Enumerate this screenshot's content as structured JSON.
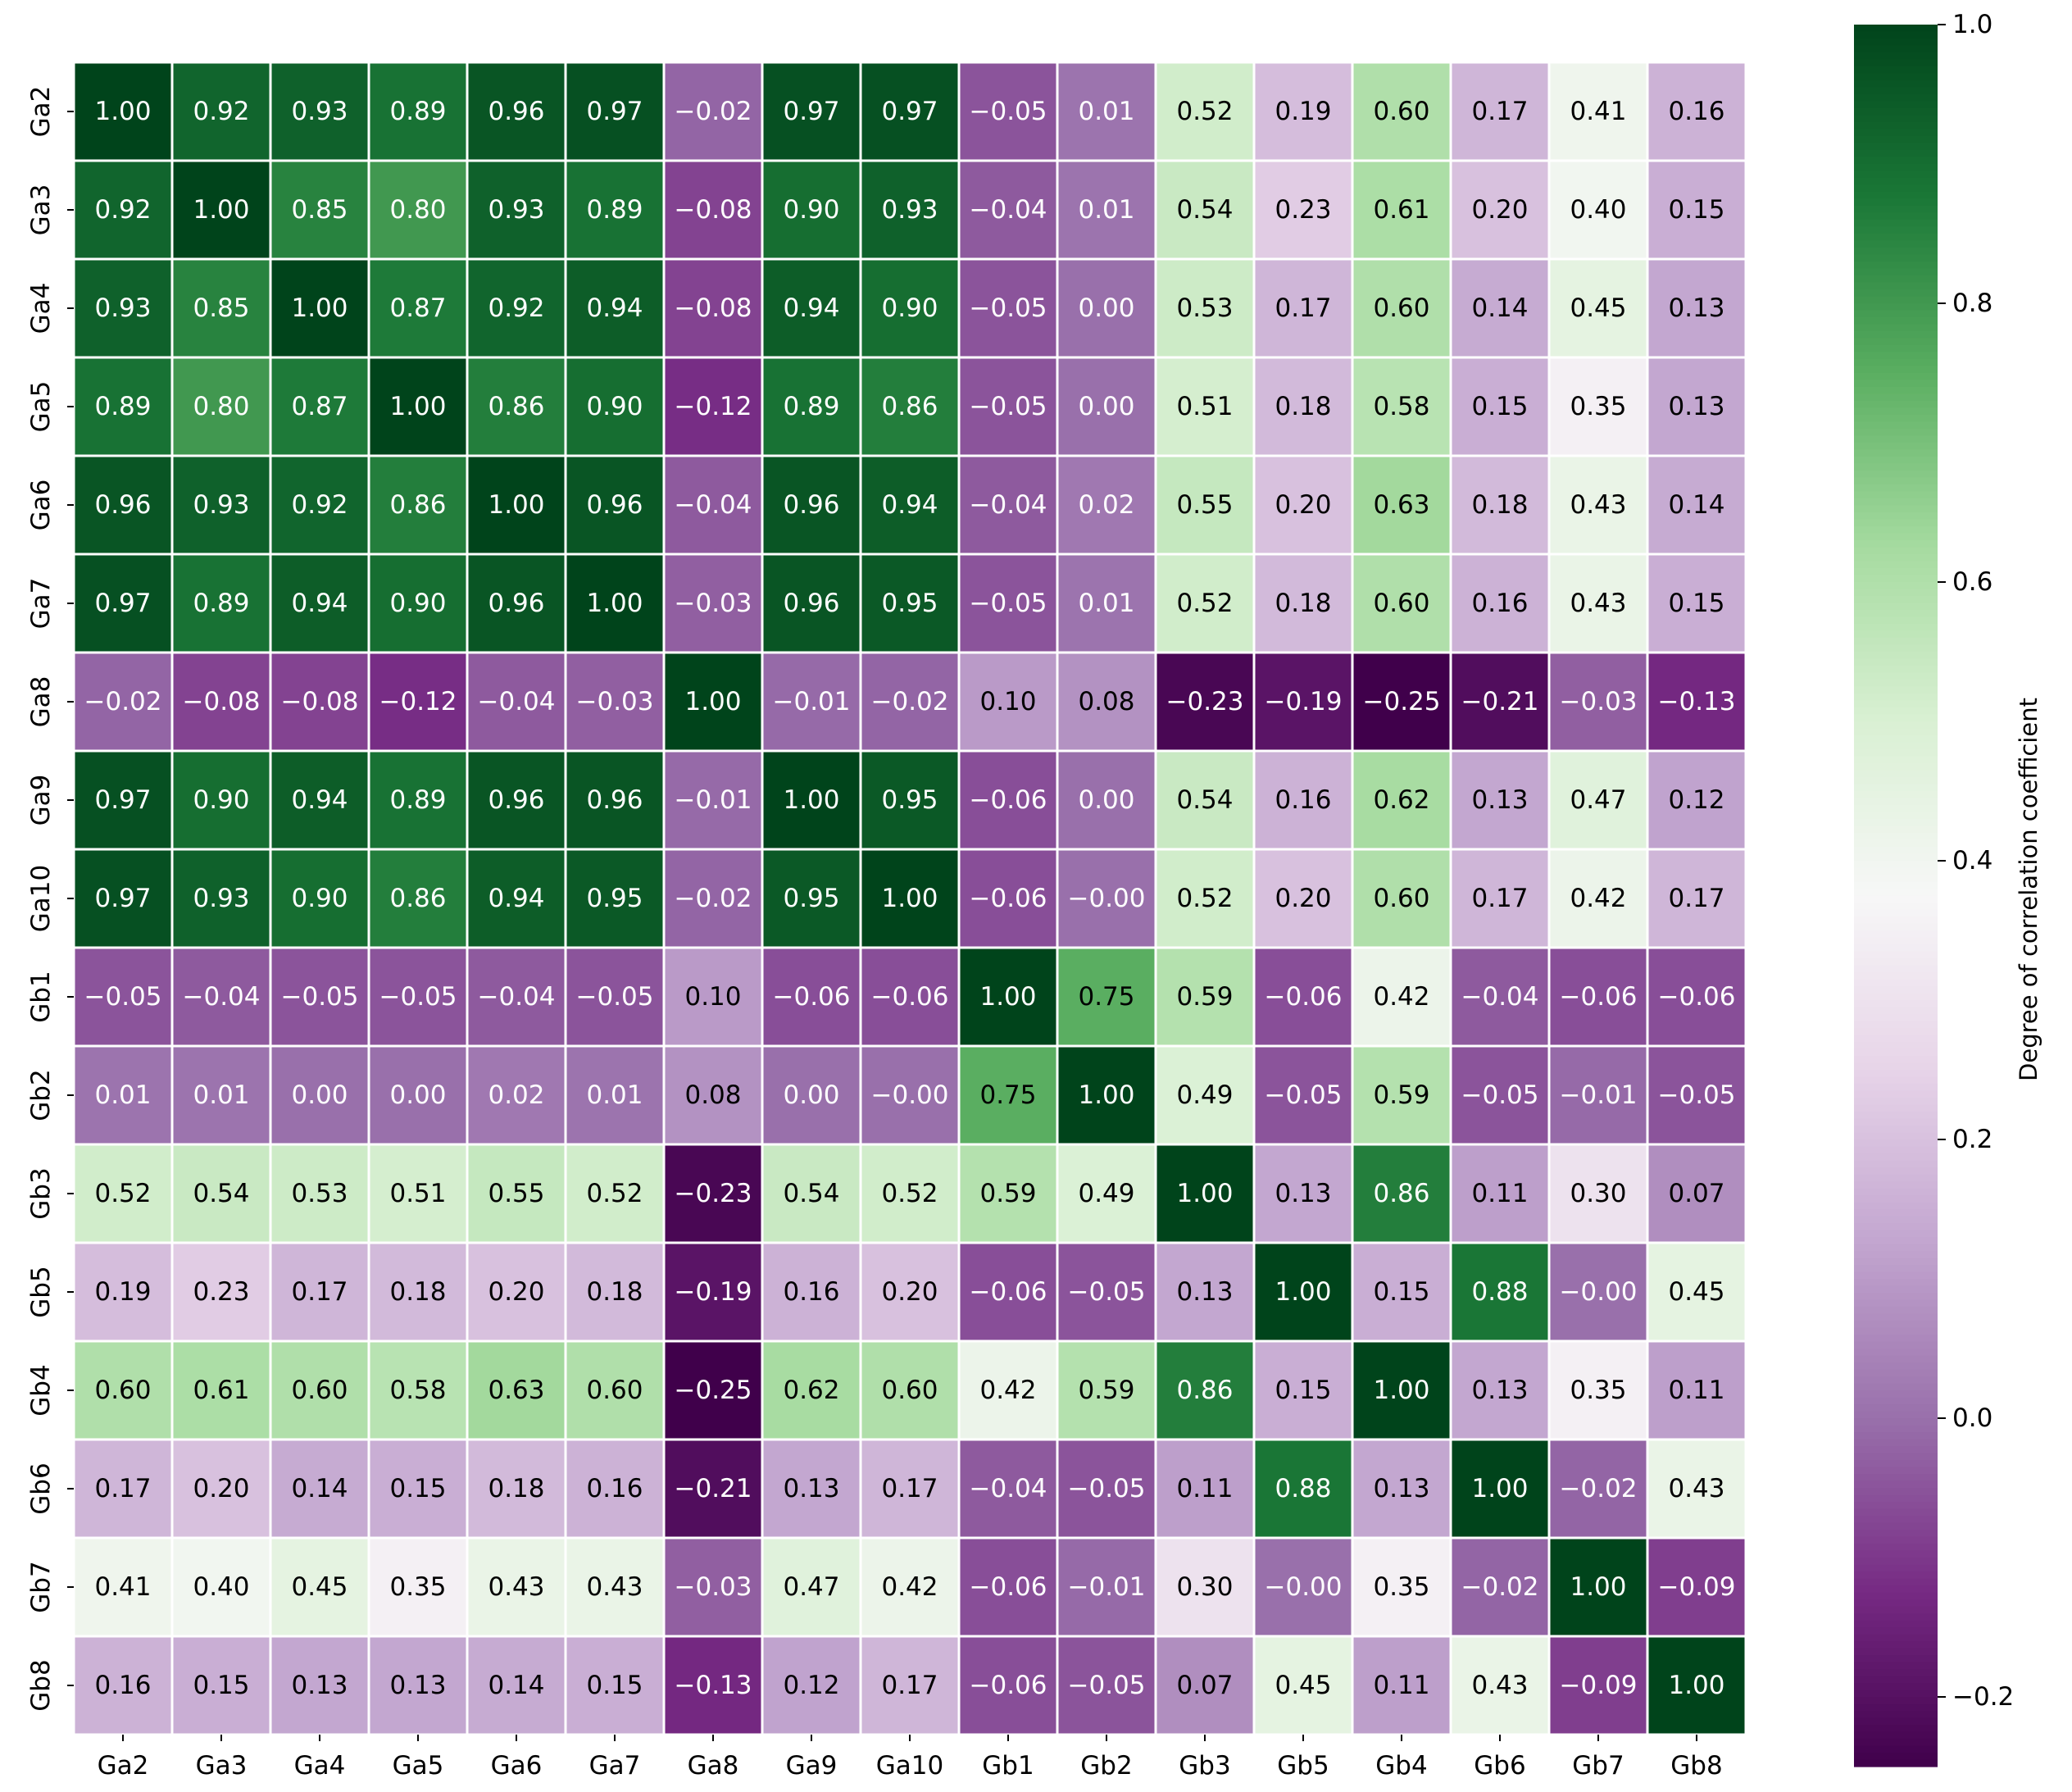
{
  "chart_data": {
    "type": "heatmap",
    "title": "",
    "xlabel": "",
    "ylabel": "",
    "x_labels": [
      "Ga2",
      "Ga3",
      "Ga4",
      "Ga5",
      "Ga6",
      "Ga7",
      "Ga8",
      "Ga9",
      "Ga10",
      "Gb1",
      "Gb2",
      "Gb3",
      "Gb5",
      "Gb4",
      "Gb6",
      "Gb7",
      "Gb8"
    ],
    "y_labels": [
      "Ga2",
      "Ga3",
      "Ga4",
      "Ga5",
      "Ga6",
      "Ga7",
      "Ga8",
      "Ga9",
      "Ga10",
      "Gb1",
      "Gb2",
      "Gb3",
      "Gb5",
      "Gb4",
      "Gb6",
      "Gb7",
      "Gb8"
    ],
    "values": [
      [
        "1.00",
        "0.92",
        "0.93",
        "0.89",
        "0.96",
        "0.97",
        "−0.02",
        "0.97",
        "0.97",
        "−0.05",
        "0.01",
        "0.52",
        "0.19",
        "0.60",
        "0.17",
        "0.41",
        "0.16"
      ],
      [
        "0.92",
        "1.00",
        "0.85",
        "0.80",
        "0.93",
        "0.89",
        "−0.08",
        "0.90",
        "0.93",
        "−0.04",
        "0.01",
        "0.54",
        "0.23",
        "0.61",
        "0.20",
        "0.40",
        "0.15"
      ],
      [
        "0.93",
        "0.85",
        "1.00",
        "0.87",
        "0.92",
        "0.94",
        "−0.08",
        "0.94",
        "0.90",
        "−0.05",
        "0.00",
        "0.53",
        "0.17",
        "0.60",
        "0.14",
        "0.45",
        "0.13"
      ],
      [
        "0.89",
        "0.80",
        "0.87",
        "1.00",
        "0.86",
        "0.90",
        "−0.12",
        "0.89",
        "0.86",
        "−0.05",
        "0.00",
        "0.51",
        "0.18",
        "0.58",
        "0.15",
        "0.35",
        "0.13"
      ],
      [
        "0.96",
        "0.93",
        "0.92",
        "0.86",
        "1.00",
        "0.96",
        "−0.04",
        "0.96",
        "0.94",
        "−0.04",
        "0.02",
        "0.55",
        "0.20",
        "0.63",
        "0.18",
        "0.43",
        "0.14"
      ],
      [
        "0.97",
        "0.89",
        "0.94",
        "0.90",
        "0.96",
        "1.00",
        "−0.03",
        "0.96",
        "0.95",
        "−0.05",
        "0.01",
        "0.52",
        "0.18",
        "0.60",
        "0.16",
        "0.43",
        "0.15"
      ],
      [
        "−0.02",
        "−0.08",
        "−0.08",
        "−0.12",
        "−0.04",
        "−0.03",
        "1.00",
        "−0.01",
        "−0.02",
        "0.10",
        "0.08",
        "−0.23",
        "−0.19",
        "−0.25",
        "−0.21",
        "−0.03",
        "−0.13"
      ],
      [
        "0.97",
        "0.90",
        "0.94",
        "0.89",
        "0.96",
        "0.96",
        "−0.01",
        "1.00",
        "0.95",
        "−0.06",
        "0.00",
        "0.54",
        "0.16",
        "0.62",
        "0.13",
        "0.47",
        "0.12"
      ],
      [
        "0.97",
        "0.93",
        "0.90",
        "0.86",
        "0.94",
        "0.95",
        "−0.02",
        "0.95",
        "1.00",
        "−0.06",
        "−0.00",
        "0.52",
        "0.20",
        "0.60",
        "0.17",
        "0.42",
        "0.17"
      ],
      [
        "−0.05",
        "−0.04",
        "−0.05",
        "−0.05",
        "−0.04",
        "−0.05",
        "0.10",
        "−0.06",
        "−0.06",
        "1.00",
        "0.75",
        "0.59",
        "−0.06",
        "0.42",
        "−0.04",
        "−0.06",
        "−0.06"
      ],
      [
        "0.01",
        "0.01",
        "0.00",
        "0.00",
        "0.02",
        "0.01",
        "0.08",
        "0.00",
        "−0.00",
        "0.75",
        "1.00",
        "0.49",
        "−0.05",
        "0.59",
        "−0.05",
        "−0.01",
        "−0.05"
      ],
      [
        "0.52",
        "0.54",
        "0.53",
        "0.51",
        "0.55",
        "0.52",
        "−0.23",
        "0.54",
        "0.52",
        "0.59",
        "0.49",
        "1.00",
        "0.13",
        "0.86",
        "0.11",
        "0.30",
        "0.07"
      ],
      [
        "0.19",
        "0.23",
        "0.17",
        "0.18",
        "0.20",
        "0.18",
        "−0.19",
        "0.16",
        "0.20",
        "−0.06",
        "−0.05",
        "0.13",
        "1.00",
        "0.15",
        "0.88",
        "−0.00",
        "0.45"
      ],
      [
        "0.60",
        "0.61",
        "0.60",
        "0.58",
        "0.63",
        "0.60",
        "−0.25",
        "0.62",
        "0.60",
        "0.42",
        "0.59",
        "0.86",
        "0.15",
        "1.00",
        "0.13",
        "0.35",
        "0.11"
      ],
      [
        "0.17",
        "0.20",
        "0.14",
        "0.15",
        "0.18",
        "0.16",
        "−0.21",
        "0.13",
        "0.17",
        "−0.04",
        "−0.05",
        "0.11",
        "0.88",
        "0.13",
        "1.00",
        "−0.02",
        "0.43"
      ],
      [
        "0.41",
        "0.40",
        "0.45",
        "0.35",
        "0.43",
        "0.43",
        "−0.03",
        "0.47",
        "0.42",
        "−0.06",
        "−0.01",
        "0.30",
        "−0.00",
        "0.35",
        "−0.02",
        "1.00",
        "−0.09"
      ],
      [
        "0.16",
        "0.15",
        "0.13",
        "0.13",
        "0.14",
        "0.15",
        "−0.13",
        "0.12",
        "0.17",
        "−0.06",
        "−0.05",
        "0.07",
        "0.45",
        "0.11",
        "0.43",
        "−0.09",
        "1.00"
      ]
    ],
    "colormap": "PRGn",
    "vmin": -0.25,
    "vmax": 1.0,
    "colorbar": {
      "label": "Degree of correlation coefficient",
      "ticks": [
        1.0,
        0.8,
        0.6,
        0.4,
        0.2,
        0.0,
        -0.2
      ],
      "tick_labels": [
        "1.0",
        "0.8",
        "0.6",
        "0.4",
        "0.2",
        "0.0",
        "−0.2"
      ]
    },
    "grid": false,
    "cell_border_color": "#ffffff",
    "annotations": true
  }
}
